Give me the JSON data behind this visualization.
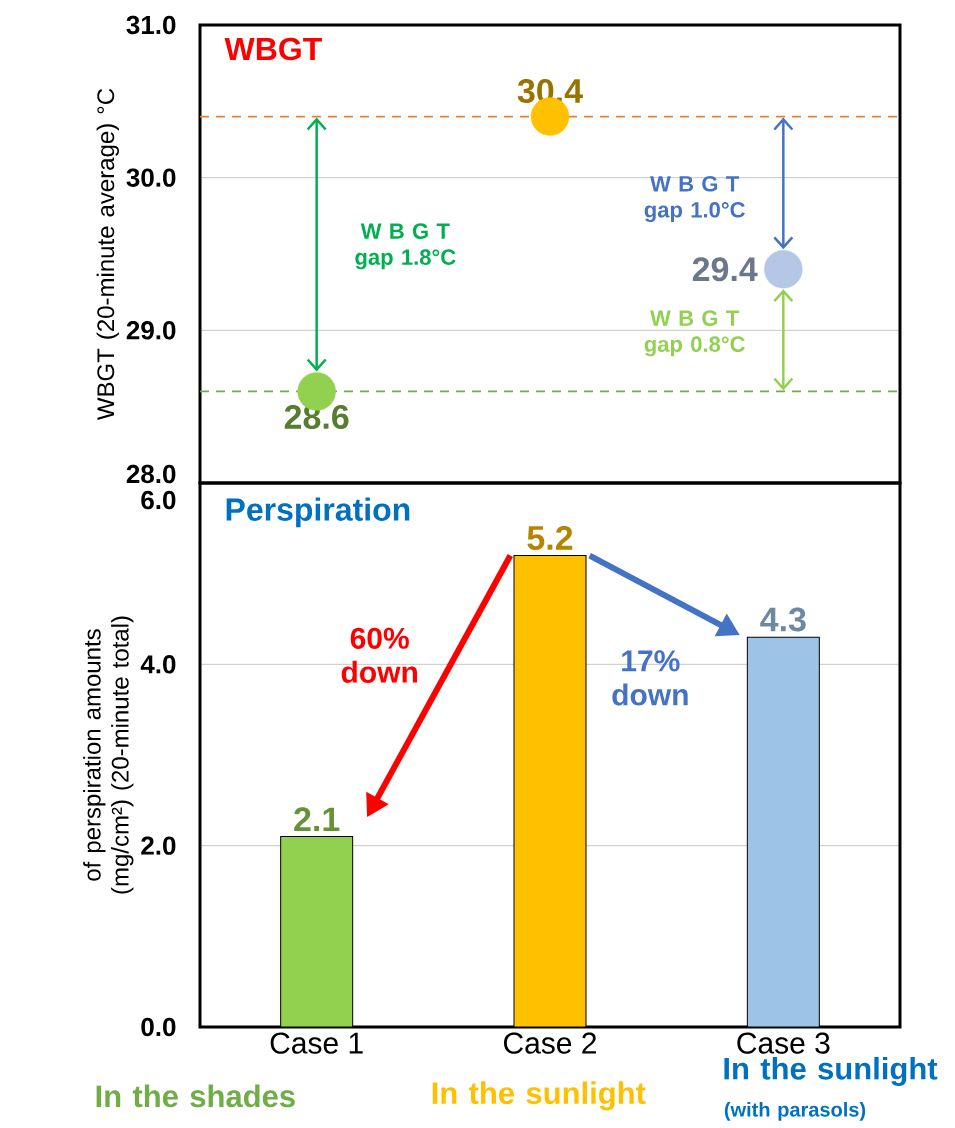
{
  "chart_data": [
    {
      "type": "scatter",
      "title": "WBGT",
      "ylabel": "WBGT (20-minute average) °C",
      "categories": [
        null,
        null,
        null
      ],
      "values": [
        28.6,
        30.4,
        29.4
      ],
      "colors": [
        "#92d050",
        "#ffc000",
        "#b4c7e7"
      ],
      "marker": "circle",
      "data_labels": true,
      "ylim": [
        28,
        31
      ],
      "yticks": [
        {
          "value": 28,
          "label": "28.0"
        },
        {
          "value": 29,
          "label": "29.0"
        },
        {
          "value": 30,
          "label": "30.0"
        },
        {
          "value": 31,
          "label": "31.0"
        }
      ],
      "grid": "y",
      "tick_labels": "y",
      "ref_lines": [
        {
          "axis": "y",
          "value": 30.4,
          "color": "#ed7d31",
          "line_style": "dashed"
        },
        {
          "axis": "y",
          "value": 28.6,
          "color": "#70ad47",
          "line_style": "dashed"
        }
      ],
      "annotations": [
        "W B G T gap 1.8°C",
        "W B G T gap 1.0°C",
        "W B G T gap 0.8°C"
      ]
    },
    {
      "type": "bar",
      "title": "Perspiration",
      "ylabel": "of perspiration amounts (mg/cm²) (20-minute total)",
      "categories": [
        "Case 1",
        "Case 2",
        "Case 3"
      ],
      "values": [
        2.1,
        5.2,
        4.3
      ],
      "colors": [
        "#92d050",
        "#ffc000",
        "#9dc3e6"
      ],
      "data_labels": true,
      "ylim": [
        0,
        6
      ],
      "yticks": [
        {
          "value": 0,
          "label": "0.0"
        },
        {
          "value": 2,
          "label": "2.0"
        },
        {
          "value": 4,
          "label": "4.0"
        },
        {
          "value": 6,
          "label": "6.0"
        }
      ],
      "grid": "y",
      "annotations": [
        "60% down",
        "17% down",
        "In the shades",
        "In the sunlight",
        "In the sunlight",
        "(with parasols)"
      ]
    }
  ]
}
